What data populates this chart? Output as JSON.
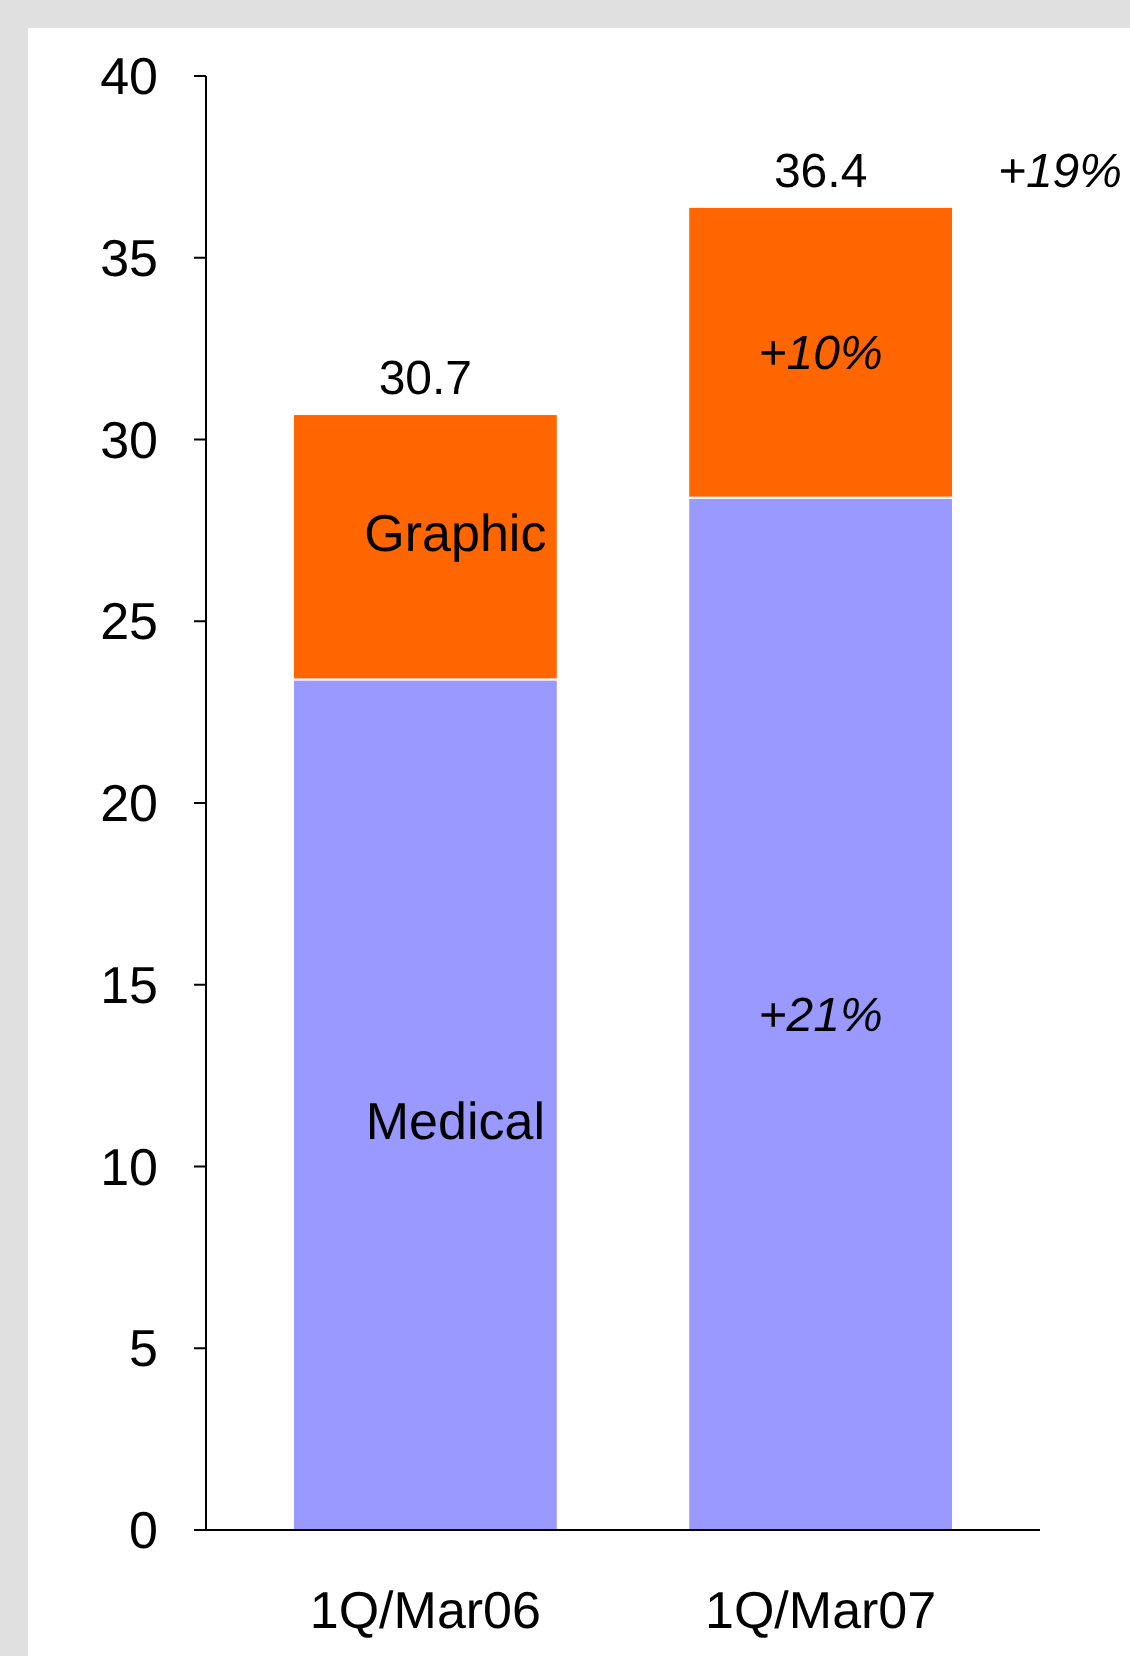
{
  "chart_data": {
    "type": "bar",
    "stacked": true,
    "categories": [
      "1Q/Mar06",
      "1Q/Mar07"
    ],
    "series": [
      {
        "name": "Medical",
        "color": "#9999ff",
        "values": [
          23.4,
          28.4
        ]
      },
      {
        "name": "Graphic",
        "color": "#ff6600",
        "values": [
          7.3,
          8.0
        ]
      }
    ],
    "totals": [
      "30.7",
      "36.4"
    ],
    "ylim": [
      0,
      40
    ],
    "yticks": [
      0,
      5,
      10,
      15,
      20,
      25,
      30,
      35,
      40
    ],
    "grid": false,
    "annotations": [
      "+21%",
      "+10%",
      "+19%"
    ]
  }
}
